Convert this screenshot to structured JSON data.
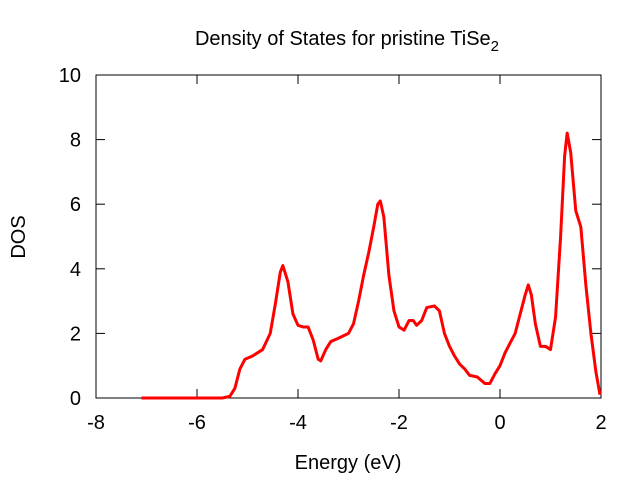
{
  "chart_data": {
    "type": "line",
    "title": {
      "text": "Density of States for pristine TiSe",
      "subscript": "2"
    },
    "xlabel": "Energy (eV)",
    "ylabel": "DOS",
    "color": "#ff0000",
    "x": [
      -7.1,
      -5.5,
      -5.35,
      -5.25,
      -5.15,
      -5.05,
      -4.9,
      -4.7,
      -4.55,
      -4.45,
      -4.35,
      -4.3,
      -4.2,
      -4.1,
      -4.0,
      -3.9,
      -3.8,
      -3.7,
      -3.6,
      -3.55,
      -3.45,
      -3.35,
      -3.2,
      -3.0,
      -2.9,
      -2.8,
      -2.7,
      -2.6,
      -2.5,
      -2.42,
      -2.37,
      -2.3,
      -2.2,
      -2.1,
      -2.0,
      -1.9,
      -1.8,
      -1.72,
      -1.65,
      -1.55,
      -1.45,
      -1.3,
      -1.2,
      -1.1,
      -1.0,
      -0.9,
      -0.8,
      -0.7,
      -0.6,
      -0.45,
      -0.3,
      -0.2,
      -0.1,
      0,
      0.1,
      0.2,
      0.3,
      0.4,
      0.5,
      0.56,
      0.62,
      0.7,
      0.8,
      0.9,
      1.0,
      1.1,
      1.2,
      1.28,
      1.33,
      1.4,
      1.5,
      1.6,
      1.7,
      1.8,
      1.9,
      1.98
    ],
    "values": [
      0,
      0,
      0.05,
      0.3,
      0.9,
      1.2,
      1.3,
      1.5,
      2.0,
      2.9,
      3.9,
      4.1,
      3.6,
      2.6,
      2.25,
      2.2,
      2.2,
      1.8,
      1.2,
      1.15,
      1.5,
      1.75,
      1.85,
      2.0,
      2.3,
      3.0,
      3.8,
      4.5,
      5.3,
      6.0,
      6.1,
      5.6,
      3.8,
      2.7,
      2.2,
      2.1,
      2.4,
      2.4,
      2.25,
      2.4,
      2.8,
      2.85,
      2.7,
      2.0,
      1.6,
      1.3,
      1.05,
      0.9,
      0.7,
      0.65,
      0.45,
      0.45,
      0.75,
      1.0,
      1.4,
      1.7,
      2.0,
      2.6,
      3.2,
      3.5,
      3.2,
      2.3,
      1.6,
      1.6,
      1.5,
      2.5,
      5.0,
      7.5,
      8.2,
      7.6,
      5.8,
      5.3,
      3.5,
      2.0,
      0.8,
      0.1
    ],
    "xlim": [
      -8,
      2
    ],
    "ylim": [
      0,
      10
    ],
    "xticks": [
      -8,
      -6,
      -4,
      -2,
      0,
      2
    ],
    "yticks": [
      0,
      2,
      4,
      6,
      8,
      10
    ],
    "grid": false
  }
}
